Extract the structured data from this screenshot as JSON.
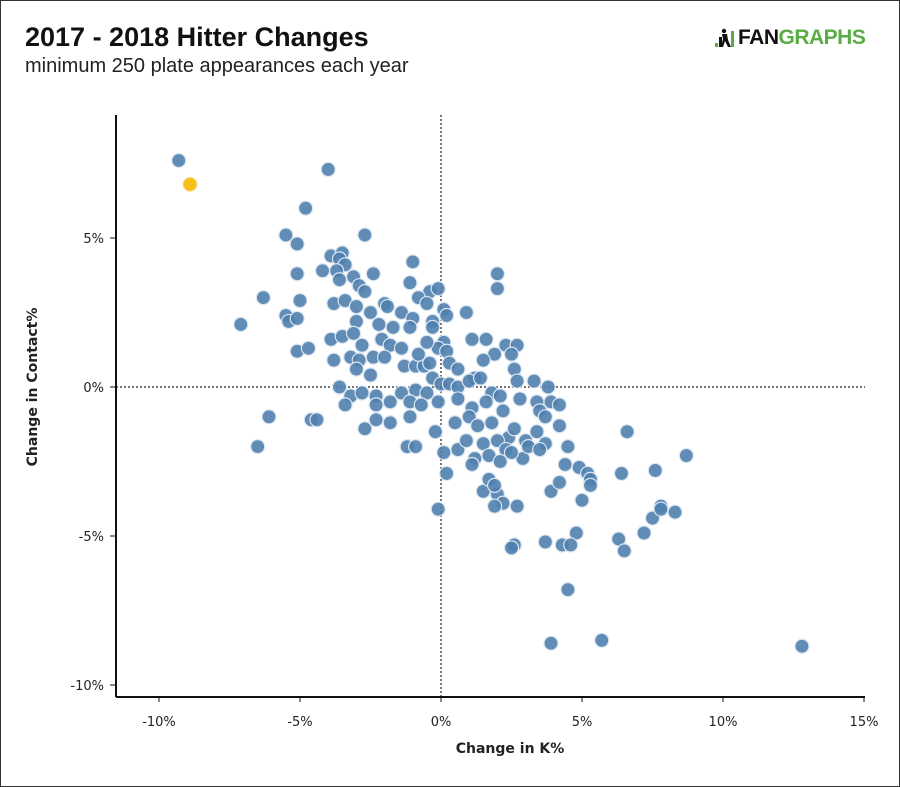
{
  "header": {
    "title": "2017 - 2018 Hitter Changes",
    "subtitle": "minimum 250 plate appearances each year",
    "logo_text_dark": "FAN",
    "logo_text_green": "GRAPHS"
  },
  "colors": {
    "point": "#4f7fae",
    "highlight": "#f5bf1d",
    "logo_green": "#5aac44"
  },
  "chart_data": {
    "type": "scatter",
    "title": "2017 - 2018 Hitter Changes",
    "subtitle": "minimum 250 plate appearances each year",
    "xlabel": "Change in K%",
    "ylabel": "Change in Contact%",
    "xlim": [
      -11.5,
      15
    ],
    "ylim": [
      -10.4,
      9.2
    ],
    "xticks": [
      -10,
      -5,
      0,
      5,
      10,
      15
    ],
    "xtick_labels": [
      "-10%",
      "-5%",
      "0%",
      "5%",
      "10%",
      "15%"
    ],
    "yticks": [
      5,
      0,
      -5,
      -10
    ],
    "ytick_labels": [
      "5%",
      "0%",
      "-5%",
      "-10%"
    ],
    "reference_lines": {
      "x": 0,
      "y": 0,
      "style": "dotted"
    },
    "grid": false,
    "highlight": {
      "x": -8.9,
      "y": 6.8
    },
    "points": [
      [
        -9.3,
        7.6
      ],
      [
        -4.0,
        7.3
      ],
      [
        -4.8,
        6.0
      ],
      [
        -5.5,
        5.1
      ],
      [
        -5.1,
        4.8
      ],
      [
        -2.7,
        5.1
      ],
      [
        -3.9,
        4.4
      ],
      [
        -3.5,
        4.5
      ],
      [
        -3.6,
        4.3
      ],
      [
        -3.4,
        4.1
      ],
      [
        -4.2,
        3.9
      ],
      [
        -3.7,
        3.9
      ],
      [
        -3.6,
        3.6
      ],
      [
        -3.1,
        3.7
      ],
      [
        -2.4,
        3.8
      ],
      [
        -2.9,
        3.4
      ],
      [
        -2.7,
        3.2
      ],
      [
        -5.1,
        3.8
      ],
      [
        -6.3,
        3.0
      ],
      [
        -5.0,
        2.9
      ],
      [
        -5.5,
        2.4
      ],
      [
        -5.4,
        2.2
      ],
      [
        -5.1,
        2.3
      ],
      [
        -7.1,
        2.1
      ],
      [
        -3.8,
        2.8
      ],
      [
        -3.4,
        2.9
      ],
      [
        -3.0,
        2.7
      ],
      [
        -2.5,
        2.5
      ],
      [
        -2.0,
        2.8
      ],
      [
        -1.9,
        2.7
      ],
      [
        -1.4,
        2.5
      ],
      [
        -1.0,
        2.3
      ],
      [
        -3.0,
        2.2
      ],
      [
        -2.2,
        2.1
      ],
      [
        -1.7,
        2.0
      ],
      [
        -1.1,
        2.0
      ],
      [
        -3.9,
        1.6
      ],
      [
        -3.5,
        1.7
      ],
      [
        -3.1,
        1.8
      ],
      [
        -2.8,
        1.4
      ],
      [
        -2.1,
        1.6
      ],
      [
        -1.8,
        1.4
      ],
      [
        -1.4,
        1.3
      ],
      [
        -5.1,
        1.2
      ],
      [
        -4.7,
        1.3
      ],
      [
        -3.2,
        1.0
      ],
      [
        -2.9,
        0.9
      ],
      [
        -2.4,
        1.0
      ],
      [
        -2.0,
        1.0
      ],
      [
        -3.8,
        0.9
      ],
      [
        -3.0,
        0.6
      ],
      [
        -2.5,
        0.4
      ],
      [
        -1.3,
        0.7
      ],
      [
        -0.9,
        0.7
      ],
      [
        -0.6,
        0.7
      ],
      [
        -0.4,
        0.8
      ],
      [
        -1.0,
        4.2
      ],
      [
        -1.1,
        3.5
      ],
      [
        -0.4,
        3.2
      ],
      [
        -0.1,
        3.3
      ],
      [
        -0.8,
        3.0
      ],
      [
        -0.5,
        2.8
      ],
      [
        0.1,
        2.6
      ],
      [
        0.2,
        2.4
      ],
      [
        -0.3,
        2.2
      ],
      [
        -0.3,
        2.0
      ],
      [
        0.9,
        2.5
      ],
      [
        2.0,
        3.8
      ],
      [
        2.0,
        3.3
      ],
      [
        0.1,
        1.5
      ],
      [
        -0.1,
        1.3
      ],
      [
        0.2,
        1.2
      ],
      [
        -0.5,
        1.5
      ],
      [
        -0.8,
        1.1
      ],
      [
        1.1,
        1.6
      ],
      [
        1.6,
        1.6
      ],
      [
        1.9,
        1.1
      ],
      [
        2.3,
        1.4
      ],
      [
        2.7,
        1.4
      ],
      [
        2.5,
        1.1
      ],
      [
        1.5,
        0.9
      ],
      [
        0.3,
        0.8
      ],
      [
        0.6,
        0.6
      ],
      [
        1.2,
        0.3
      ],
      [
        2.6,
        0.6
      ],
      [
        2.7,
        0.2
      ],
      [
        3.3,
        0.2
      ],
      [
        3.8,
        0.0
      ],
      [
        -3.6,
        0.0
      ],
      [
        -3.2,
        -0.3
      ],
      [
        -2.8,
        -0.2
      ],
      [
        -2.3,
        -0.3
      ],
      [
        -1.8,
        -0.5
      ],
      [
        -1.4,
        -0.2
      ],
      [
        -0.9,
        -0.1
      ],
      [
        -0.5,
        -0.2
      ],
      [
        -0.3,
        0.3
      ],
      [
        0.0,
        0.1
      ],
      [
        0.3,
        0.1
      ],
      [
        0.6,
        0.0
      ],
      [
        1.0,
        0.2
      ],
      [
        1.4,
        0.3
      ],
      [
        1.8,
        -0.2
      ],
      [
        2.1,
        -0.3
      ],
      [
        -3.4,
        -0.6
      ],
      [
        -2.3,
        -0.6
      ],
      [
        -1.1,
        -0.5
      ],
      [
        -0.7,
        -0.6
      ],
      [
        -0.1,
        -0.5
      ],
      [
        0.6,
        -0.4
      ],
      [
        1.1,
        -0.7
      ],
      [
        1.6,
        -0.5
      ],
      [
        2.2,
        -0.8
      ],
      [
        2.8,
        -0.4
      ],
      [
        3.4,
        -0.5
      ],
      [
        3.9,
        -0.5
      ],
      [
        4.2,
        -0.6
      ],
      [
        3.5,
        -0.8
      ],
      [
        3.7,
        -1.0
      ],
      [
        4.2,
        -1.3
      ],
      [
        -6.1,
        -1.0
      ],
      [
        -4.6,
        -1.1
      ],
      [
        -4.4,
        -1.1
      ],
      [
        -2.7,
        -1.4
      ],
      [
        -2.3,
        -1.1
      ],
      [
        -1.8,
        -1.2
      ],
      [
        -1.1,
        -1.0
      ],
      [
        -0.2,
        -1.5
      ],
      [
        0.5,
        -1.2
      ],
      [
        1.0,
        -1.0
      ],
      [
        1.3,
        -1.3
      ],
      [
        1.8,
        -1.2
      ],
      [
        2.4,
        -1.7
      ],
      [
        2.6,
        -1.4
      ],
      [
        3.0,
        -1.8
      ],
      [
        3.4,
        -1.5
      ],
      [
        3.7,
        -1.9
      ],
      [
        4.5,
        -2.0
      ],
      [
        4.9,
        -2.7
      ],
      [
        -6.5,
        -2.0
      ],
      [
        -1.2,
        -2.0
      ],
      [
        -0.9,
        -2.0
      ],
      [
        0.1,
        -2.2
      ],
      [
        0.6,
        -2.1
      ],
      [
        0.9,
        -1.8
      ],
      [
        1.2,
        -2.4
      ],
      [
        1.5,
        -1.9
      ],
      [
        2.0,
        -1.8
      ],
      [
        2.3,
        -2.1
      ],
      [
        2.9,
        -2.4
      ],
      [
        3.1,
        -2.0
      ],
      [
        3.5,
        -2.1
      ],
      [
        4.4,
        -2.6
      ],
      [
        5.2,
        -2.9
      ],
      [
        6.6,
        -1.5
      ],
      [
        6.4,
        -2.9
      ],
      [
        7.6,
        -2.8
      ],
      [
        8.7,
        -2.3
      ],
      [
        0.2,
        -2.9
      ],
      [
        1.1,
        -2.6
      ],
      [
        1.7,
        -2.3
      ],
      [
        2.1,
        -2.5
      ],
      [
        2.5,
        -2.2
      ],
      [
        1.5,
        -3.5
      ],
      [
        2.0,
        -3.6
      ],
      [
        1.7,
        -3.1
      ],
      [
        1.9,
        -3.3
      ],
      [
        2.2,
        -3.9
      ],
      [
        2.7,
        -4.0
      ],
      [
        3.9,
        -3.5
      ],
      [
        4.2,
        -3.2
      ],
      [
        5.0,
        -3.8
      ],
      [
        5.3,
        -3.1
      ],
      [
        5.3,
        -3.3
      ],
      [
        1.9,
        -4.0
      ],
      [
        -0.1,
        -4.1
      ],
      [
        7.8,
        -4.0
      ],
      [
        7.5,
        -4.4
      ],
      [
        7.8,
        -4.1
      ],
      [
        8.3,
        -4.2
      ],
      [
        7.2,
        -4.9
      ],
      [
        4.8,
        -4.9
      ],
      [
        3.7,
        -5.2
      ],
      [
        4.3,
        -5.3
      ],
      [
        4.6,
        -5.3
      ],
      [
        2.6,
        -5.3
      ],
      [
        2.5,
        -5.4
      ],
      [
        6.3,
        -5.1
      ],
      [
        6.5,
        -5.5
      ],
      [
        4.5,
        -6.8
      ],
      [
        3.9,
        -8.6
      ],
      [
        5.7,
        -8.5
      ],
      [
        12.8,
        -8.7
      ]
    ]
  }
}
